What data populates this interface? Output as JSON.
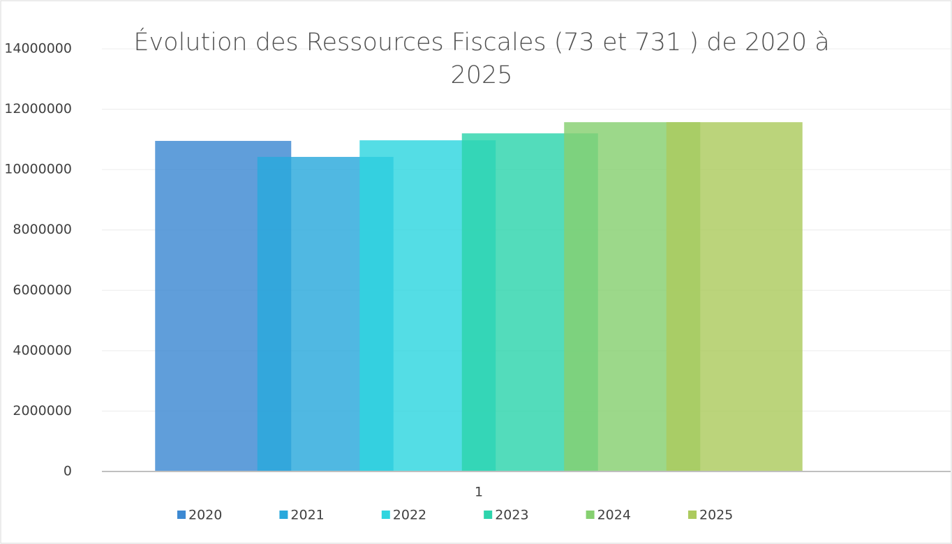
{
  "chart_data": {
    "type": "bar",
    "title": "Évolution des Ressources Fiscales (73 et 731 ) de 2020 à 2025",
    "categories": [
      "1"
    ],
    "series": [
      {
        "name": "2020",
        "color": "#3D89D2",
        "values": [
          10950000
        ]
      },
      {
        "name": "2021",
        "color": "#29A8DC",
        "values": [
          10420000
        ]
      },
      {
        "name": "2022",
        "color": "#2ED5DF",
        "values": [
          10970000
        ]
      },
      {
        "name": "2023",
        "color": "#2DD4AC",
        "values": [
          11200000
        ]
      },
      {
        "name": "2024",
        "color": "#86D070",
        "values": [
          11570000
        ]
      },
      {
        "name": "2025",
        "color": "#ACCA5E",
        "values": [
          11570000
        ]
      }
    ],
    "ylim": [
      0,
      14000000
    ],
    "yticks": [
      0,
      2000000,
      4000000,
      6000000,
      8000000,
      10000000,
      12000000,
      14000000
    ],
    "grid": true,
    "legend": "bottom"
  }
}
